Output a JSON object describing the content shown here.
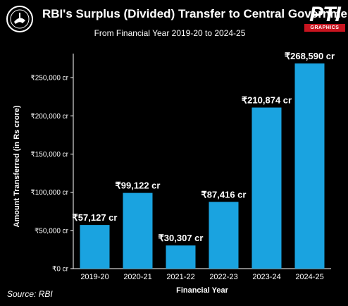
{
  "header": {
    "title": "RBI's Surplus (Divided) Transfer to Central Government",
    "subtitle": "From Financial Year 2019-20 to 2024-25",
    "logo_text": "PTI",
    "logo_subtext": "GRAPHICS",
    "emblem_icon": "rbi-emblem-icon"
  },
  "source": "Source: RBI",
  "colors": {
    "bar": "#1aa3e0",
    "background": "#000000",
    "text": "#ffffff",
    "logo_red": "#c8141f"
  },
  "chart_data": {
    "type": "bar",
    "title": "RBI's Surplus (Divided) Transfer to Central Government",
    "subtitle": "From Financial Year 2019-20 to 2024-25",
    "xlabel": "Financial Year",
    "ylabel": "Amount Transferred (in Rs crore)",
    "categories": [
      "2019-20",
      "2020-21",
      "2021-22",
      "2022-23",
      "2023-24",
      "2024-25"
    ],
    "values": [
      57127,
      99122,
      30307,
      87416,
      210874,
      268590
    ],
    "data_labels": [
      "₹57,127 cr",
      "₹99,122 cr",
      "₹30,307 cr",
      "₹87,416 cr",
      "₹210,874 cr",
      "₹268,590 cr"
    ],
    "ylim": [
      0,
      268590
    ],
    "yticks": [
      0,
      50000,
      100000,
      150000,
      200000,
      250000
    ],
    "ytick_labels": [
      "₹0 cr",
      "₹50,000 cr",
      "₹100,000 cr",
      "₹150,000 cr",
      "₹200,000 cr",
      "₹250,000 cr"
    ],
    "grid": false,
    "legend": "none"
  }
}
